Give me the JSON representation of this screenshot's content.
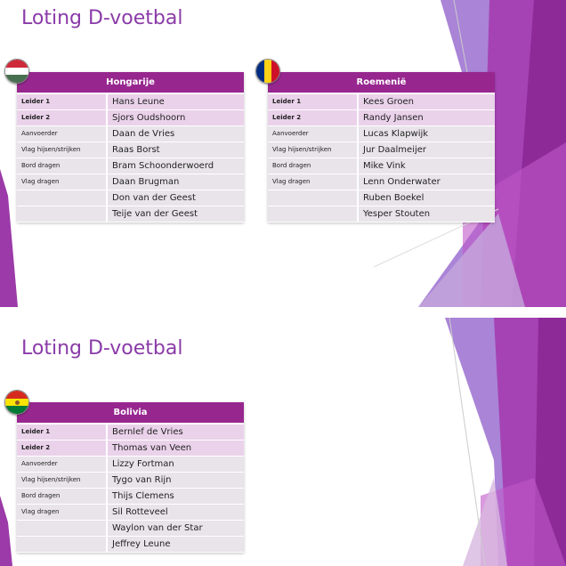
{
  "slides": [
    {
      "title": "Loting D-voetbal",
      "tables": [
        {
          "country": "Hongarije",
          "flag": "hungary-flag",
          "rows": [
            {
              "role": "Leider 1",
              "name": "Hans Leune"
            },
            {
              "role": "Leider 2",
              "name": "Sjors Oudshoorn"
            },
            {
              "role": "Aanvoerder",
              "name": "Daan de Vries"
            },
            {
              "role": "Vlag hijsen/strijken",
              "name": "Raas Borst"
            },
            {
              "role": "Bord dragen",
              "name": "Bram Schoonderwoerd"
            },
            {
              "role": "Vlag dragen",
              "name": "Daan Brugman"
            },
            {
              "role": "",
              "name": "Don van der Geest"
            },
            {
              "role": "",
              "name": "Teije van der Geest"
            }
          ]
        },
        {
          "country": "Roemenië",
          "flag": "romania-flag",
          "rows": [
            {
              "role": "Leider 1",
              "name": "Kees Groen"
            },
            {
              "role": "Leider 2",
              "name": "Randy Jansen"
            },
            {
              "role": "Aanvoerder",
              "name": "Lucas Klapwijk"
            },
            {
              "role": "Vlag hijsen/strijken",
              "name": "Jur Daalmeijer"
            },
            {
              "role": "Bord dragen",
              "name": "Mike Vink"
            },
            {
              "role": "Vlag dragen",
              "name": "Lenn Onderwater"
            },
            {
              "role": "",
              "name": "Ruben Boekel"
            },
            {
              "role": "",
              "name": "Yesper Stouten"
            }
          ]
        }
      ]
    },
    {
      "title": "Loting D-voetbal",
      "tables": [
        {
          "country": "Bolivia",
          "flag": "bolivia-flag",
          "rows": [
            {
              "role": "Leider 1",
              "name": "Bernlef de Vries"
            },
            {
              "role": "Leider 2",
              "name": "Thomas van Veen"
            },
            {
              "role": "Aanvoerder",
              "name": "Lizzy Fortman"
            },
            {
              "role": "Vlag hijsen/strijken",
              "name": "Tygo van Rijn"
            },
            {
              "role": "Bord dragen",
              "name": "Thijs Clemens"
            },
            {
              "role": "Vlag dragen",
              "name": "Sil Rotteveel"
            },
            {
              "role": "",
              "name": "Waylon van der Star"
            },
            {
              "role": "",
              "name": "Jeffrey Leune"
            }
          ]
        }
      ]
    }
  ],
  "colors": {
    "accent": "#97278f",
    "title": "#8a3ba8",
    "lead_row": "#ead2ea",
    "row": "#e8e4e9"
  }
}
